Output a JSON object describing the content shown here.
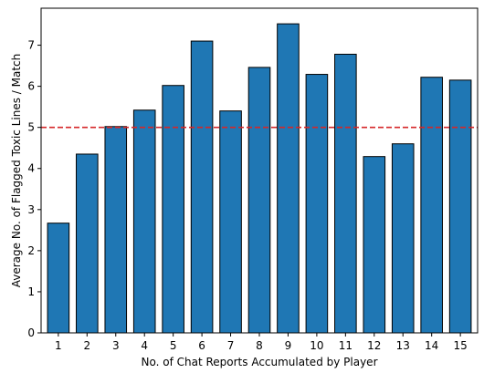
{
  "chart_data": {
    "type": "bar",
    "categories": [
      "1",
      "2",
      "3",
      "4",
      "5",
      "6",
      "7",
      "8",
      "9",
      "10",
      "11",
      "12",
      "13",
      "14",
      "15"
    ],
    "values": [
      2.67,
      4.35,
      5.02,
      5.42,
      6.02,
      7.1,
      5.4,
      6.46,
      7.52,
      6.29,
      6.78,
      4.29,
      4.6,
      6.22,
      6.15
    ],
    "xlabel": "No. of Chat Reports Accumulated by Player",
    "ylabel": "Average No. of Flagged Toxic Lines / Match",
    "ylim": [
      0,
      7.9
    ],
    "yticks": [
      0,
      1,
      2,
      3,
      4,
      5,
      6,
      7
    ],
    "reference_line": {
      "y": 5.0,
      "style": "dashed",
      "color": "#d62728"
    },
    "bar_color": "#1f77b4",
    "bar_edge_color": "#000000",
    "grid": false,
    "legend": "none"
  }
}
